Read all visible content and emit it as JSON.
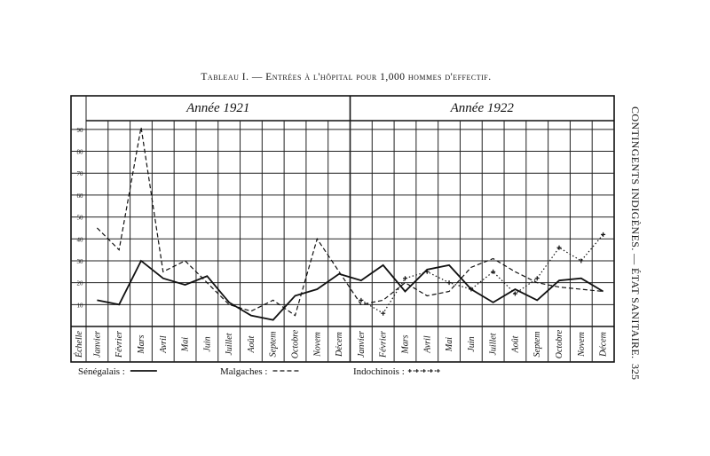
{
  "chart_data": {
    "type": "line",
    "title": "Tableau I. — Entrées à l'hôpital pour 1,000 hommes d'effectif.",
    "year_labels": [
      "Année 1921",
      "Année 1922"
    ],
    "ylabel": "Échelle",
    "categories": [
      "Janvier",
      "Février",
      "Mars",
      "Avril",
      "Mai",
      "Juin",
      "Juillet",
      "Août",
      "Septem",
      "Octobre",
      "Novem",
      "Décem",
      "Janvier",
      "Février",
      "Mars",
      "Avril",
      "Mai",
      "Juin",
      "Juillet",
      "Août",
      "Septem",
      "Octobre",
      "Novem",
      "Décem"
    ],
    "ylim": [
      0,
      94
    ],
    "yticks": [
      10,
      20,
      30,
      40,
      50,
      60,
      70,
      80,
      90
    ],
    "grid": true,
    "series": [
      {
        "name": "Sénégalais :",
        "color": "#111111",
        "style": "solid",
        "values": [
          12,
          10,
          30,
          22,
          19,
          23,
          11,
          5,
          3,
          14,
          17,
          24,
          21,
          28,
          16,
          26,
          28,
          17,
          11,
          17,
          12,
          21,
          22,
          16
        ]
      },
      {
        "name": "Malgaches :",
        "color": "#111111",
        "style": "dashed",
        "values": [
          45,
          35,
          91,
          25,
          30,
          20,
          10,
          7,
          12,
          5,
          40,
          25,
          10,
          12,
          20,
          14,
          16,
          27,
          31,
          25,
          20,
          18,
          17,
          16
        ]
      },
      {
        "name": "Indochinois :",
        "color": "#111111",
        "style": "plus",
        "values": [
          null,
          null,
          null,
          null,
          null,
          null,
          null,
          null,
          null,
          null,
          null,
          null,
          12,
          6,
          22,
          25,
          20,
          17,
          25,
          15,
          22,
          36,
          30,
          42
        ]
      }
    ]
  },
  "running_header": "CONTINGENTS INDIGÈNES. — ÉTAT SANITAIRE.",
  "page_number": "325"
}
